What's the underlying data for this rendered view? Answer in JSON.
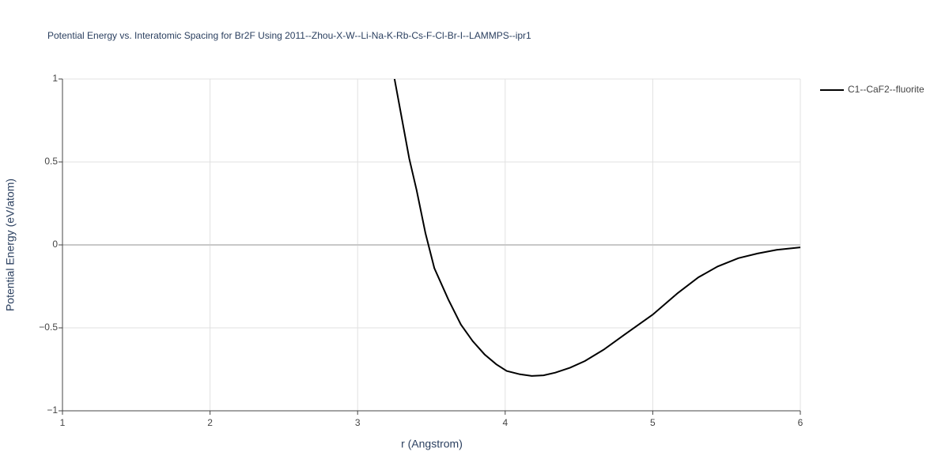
{
  "chart_data": {
    "type": "line",
    "title": "Potential Energy vs. Interatomic Spacing for Br2F Using 2011--Zhou-X-W--Li-Na-K-Rb-Cs-F-Cl-Br-I--LAMMPS--ipr1",
    "x_label": "r (Angstrom)",
    "y_label": "Potential Energy (eV/atom)",
    "x": [
      3.25,
      3.3,
      3.35,
      3.4,
      3.46,
      3.52,
      3.615,
      3.7,
      3.78,
      3.86,
      3.94,
      4.01,
      4.1,
      4.18,
      4.26,
      4.34,
      4.44,
      4.54,
      4.67,
      4.81,
      5.0,
      5.17,
      5.31,
      5.44,
      5.58,
      5.71,
      5.84,
      6.0
    ],
    "series": [
      {
        "name": "C1--CaF2--fluorite",
        "color": "#000000",
        "values": [
          1,
          0.76,
          0.52,
          0.33,
          0.07,
          -0.14,
          -0.33,
          -0.48,
          -0.58,
          -0.66,
          -0.72,
          -0.76,
          -0.78,
          -0.79,
          -0.786,
          -0.77,
          -0.74,
          -0.7,
          -0.63,
          -0.54,
          -0.42,
          -0.29,
          -0.195,
          -0.13,
          -0.08,
          -0.052,
          -0.03,
          -0.015
        ]
      }
    ],
    "xlim": [
      1,
      6
    ],
    "xticks": [
      1,
      2,
      3,
      4,
      5,
      6
    ],
    "ylim": [
      -1,
      1
    ],
    "yticks": [
      {
        "value": -1,
        "label": "−1"
      },
      {
        "value": -0.5,
        "label": "−0.5"
      },
      0,
      0.5,
      1
    ],
    "grid": true,
    "legend": "right"
  }
}
